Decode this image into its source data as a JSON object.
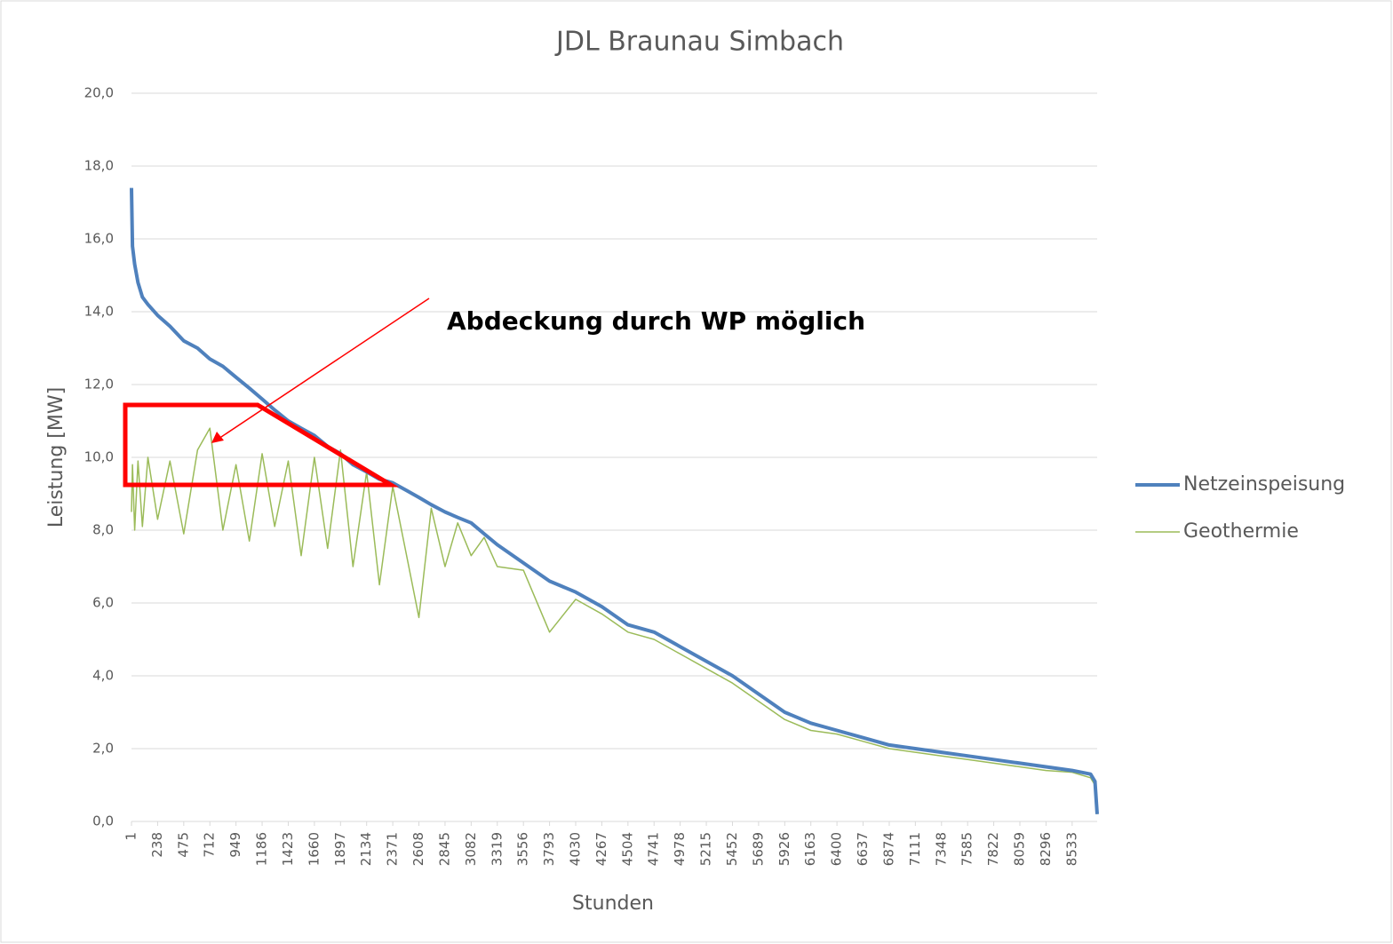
{
  "chart_data": {
    "type": "line",
    "title": "JDL Braunau Simbach",
    "x_label": "Stunden",
    "y_label": "Leistung [MW]",
    "annotation": "Abdeckung durch WP möglich",
    "x": [
      1,
      10,
      30,
      60,
      100,
      150,
      238,
      350,
      475,
      600,
      712,
      830,
      949,
      1070,
      1186,
      1300,
      1423,
      1540,
      1660,
      1780,
      1897,
      2010,
      2134,
      2250,
      2371,
      2490,
      2608,
      2720,
      2845,
      2960,
      3082,
      3200,
      3319,
      3556,
      3793,
      4030,
      4267,
      4504,
      4741,
      4978,
      5215,
      5452,
      5689,
      5926,
      6163,
      6400,
      6637,
      6874,
      7111,
      7348,
      7585,
      7822,
      8059,
      8296,
      8533,
      8700,
      8740,
      8760
    ],
    "series": [
      {
        "name": "Netzeinspeisung",
        "color": "#4f81bd",
        "width": 4,
        "values": [
          17.4,
          15.8,
          15.3,
          14.8,
          14.4,
          14.2,
          13.9,
          13.6,
          13.2,
          13.0,
          12.7,
          12.5,
          12.2,
          11.9,
          11.6,
          11.3,
          11.0,
          10.8,
          10.6,
          10.3,
          10.1,
          9.8,
          9.6,
          9.4,
          9.3,
          9.1,
          8.9,
          8.7,
          8.5,
          8.35,
          8.2,
          7.9,
          7.6,
          7.1,
          6.6,
          6.3,
          5.9,
          5.4,
          5.2,
          4.8,
          4.4,
          4.0,
          3.5,
          3.0,
          2.7,
          2.5,
          2.3,
          2.1,
          2.0,
          1.9,
          1.8,
          1.7,
          1.6,
          1.5,
          1.4,
          1.3,
          1.1,
          0.2
        ]
      },
      {
        "name": "Geothermie",
        "color": "#9bbb59",
        "width": 1.5,
        "values": [
          8.5,
          9.8,
          8.0,
          9.9,
          8.1,
          10.0,
          8.3,
          9.9,
          7.9,
          10.2,
          10.8,
          8.0,
          9.8,
          7.7,
          10.1,
          8.1,
          9.9,
          7.3,
          10.0,
          7.5,
          10.2,
          7.0,
          9.6,
          6.5,
          9.2,
          7.4,
          5.6,
          8.6,
          7.0,
          8.2,
          7.3,
          7.8,
          7.0,
          6.9,
          5.2,
          6.1,
          5.7,
          5.2,
          5.0,
          4.6,
          4.2,
          3.8,
          3.3,
          2.8,
          2.5,
          2.4,
          2.2,
          2.0,
          1.9,
          1.8,
          1.7,
          1.6,
          1.5,
          1.4,
          1.35,
          1.2,
          1.0,
          0.2
        ]
      }
    ],
    "xlim": [
      1,
      8760
    ],
    "xticks": [
      1,
      238,
      475,
      712,
      949,
      1186,
      1423,
      1660,
      1897,
      2134,
      2371,
      2608,
      2845,
      3082,
      3319,
      3556,
      3793,
      4030,
      4267,
      4504,
      4741,
      4978,
      5215,
      5452,
      5689,
      5926,
      6163,
      6400,
      6637,
      6874,
      7111,
      7348,
      7585,
      7822,
      8059,
      8296,
      8533
    ],
    "ylim": [
      0,
      20
    ],
    "yticks": [
      {
        "value": 0,
        "label": "0,0"
      },
      {
        "value": 2,
        "label": "2,0"
      },
      {
        "value": 4,
        "label": "4,0"
      },
      {
        "value": 6,
        "label": "6,0"
      },
      {
        "value": 8,
        "label": "8,0"
      },
      {
        "value": 10,
        "label": "10,0"
      },
      {
        "value": 12,
        "label": "12,0"
      },
      {
        "value": 14,
        "label": "14,0"
      },
      {
        "value": 16,
        "label": "16,0"
      },
      {
        "value": 18,
        "label": "18,0"
      },
      {
        "value": 20,
        "label": "20,0"
      }
    ],
    "grid": true,
    "legend": "right"
  }
}
